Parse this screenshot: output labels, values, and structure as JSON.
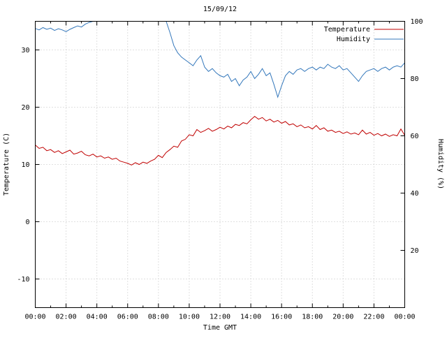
{
  "chart_data": {
    "type": "line",
    "title": "15/09/12",
    "xlabel": "Time GMT",
    "ylabel": "Temperature (C)",
    "y2label": "Humidity (%)",
    "xlim": [
      0,
      24
    ],
    "ylim": [
      -15,
      35
    ],
    "y2lim": [
      0,
      100
    ],
    "grid": true,
    "legend_position": "top-right-inside",
    "x_ticks": {
      "hours": [
        0,
        2,
        4,
        6,
        8,
        10,
        12,
        14,
        16,
        18,
        20,
        22,
        24
      ],
      "labels": [
        "00:00",
        "02:00",
        "04:00",
        "06:00",
        "08:00",
        "10:00",
        "12:00",
        "14:00",
        "16:00",
        "18:00",
        "20:00",
        "22:00",
        "00:00"
      ]
    },
    "y_ticks": [
      -10,
      0,
      10,
      20,
      30
    ],
    "y2_ticks": [
      20,
      40,
      60,
      80,
      100
    ],
    "x_start_hour": 0,
    "x_step_hours": 0.25,
    "series": [
      {
        "name": "Temperature",
        "axis": "y1",
        "color": "#c00000",
        "values": [
          13.4,
          12.8,
          13.0,
          12.4,
          12.6,
          12.1,
          12.4,
          11.9,
          12.2,
          12.5,
          11.8,
          12.0,
          12.3,
          11.7,
          11.5,
          11.8,
          11.3,
          11.5,
          11.1,
          11.3,
          10.9,
          11.1,
          10.6,
          10.4,
          10.2,
          9.9,
          10.3,
          10.0,
          10.4,
          10.2,
          10.6,
          10.9,
          11.6,
          11.2,
          12.1,
          12.6,
          13.2,
          13.0,
          14.1,
          14.4,
          15.2,
          15.0,
          16.1,
          15.6,
          15.9,
          16.3,
          15.8,
          16.1,
          16.5,
          16.2,
          16.7,
          16.4,
          17.0,
          16.8,
          17.3,
          17.1,
          17.8,
          18.4,
          17.9,
          18.2,
          17.6,
          17.9,
          17.4,
          17.7,
          17.2,
          17.5,
          16.9,
          17.1,
          16.6,
          16.9,
          16.4,
          16.6,
          16.2,
          16.8,
          16.1,
          16.4,
          15.8,
          16.0,
          15.6,
          15.8,
          15.4,
          15.7,
          15.3,
          15.5,
          15.2,
          16.0,
          15.3,
          15.6,
          15.1,
          15.4,
          15.0,
          15.3,
          14.9,
          15.2,
          15.0,
          16.2,
          15.1
        ]
      },
      {
        "name": "Humidity",
        "axis": "y2",
        "color": "#3377bb",
        "values": [
          97.5,
          97.0,
          97.8,
          97.2,
          97.6,
          96.8,
          97.4,
          97.0,
          96.4,
          97.2,
          97.8,
          98.4,
          98.0,
          99.0,
          99.6,
          100,
          100,
          100,
          100,
          100,
          100,
          100,
          100,
          100,
          100,
          100,
          100,
          100,
          100,
          100,
          100,
          100,
          100,
          100,
          100,
          96.0,
          91.5,
          89.0,
          87.5,
          86.5,
          85.5,
          84.5,
          86.5,
          88.0,
          84.0,
          82.5,
          83.5,
          82.0,
          81.0,
          80.5,
          81.5,
          79.0,
          80.0,
          77.5,
          79.5,
          80.5,
          82.5,
          80.0,
          81.5,
          83.5,
          81.0,
          82.0,
          78.0,
          73.5,
          77.5,
          81.0,
          82.5,
          81.5,
          83.0,
          83.5,
          82.5,
          83.5,
          84.0,
          83.0,
          84.0,
          83.5,
          85.0,
          84.0,
          83.5,
          84.5,
          83.0,
          83.5,
          82.0,
          80.5,
          79.0,
          81.0,
          82.5,
          83.0,
          83.5,
          82.5,
          83.5,
          84.0,
          83.0,
          84.0,
          84.5,
          84.0,
          85.5
        ]
      }
    ]
  }
}
